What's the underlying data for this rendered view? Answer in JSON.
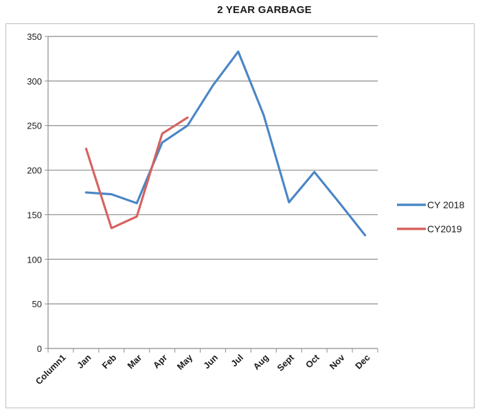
{
  "chart_data": {
    "type": "line",
    "title": "2 YEAR GARBAGE",
    "xlabel": "",
    "ylabel": "",
    "categories": [
      "Column1",
      "Jan",
      "Feb",
      "Mar",
      "Apr",
      "May",
      "Jun",
      "Jul",
      "Aug",
      "Sept",
      "Oct",
      "Nov",
      "Dec"
    ],
    "ylim": [
      0,
      350
    ],
    "yticks": [
      0,
      50,
      100,
      150,
      200,
      250,
      300,
      350
    ],
    "grid": true,
    "legend_position": "right",
    "series": [
      {
        "name": "CY 2018",
        "color": "#4a86c5",
        "values": [
          null,
          175,
          173,
          163,
          231,
          250,
          295,
          333,
          262,
          164,
          198,
          163,
          127
        ]
      },
      {
        "name": "CY2019",
        "color": "#d6625f",
        "values": [
          null,
          224,
          135,
          148,
          241,
          259,
          null,
          null,
          null,
          null,
          null,
          null,
          null
        ]
      }
    ]
  }
}
